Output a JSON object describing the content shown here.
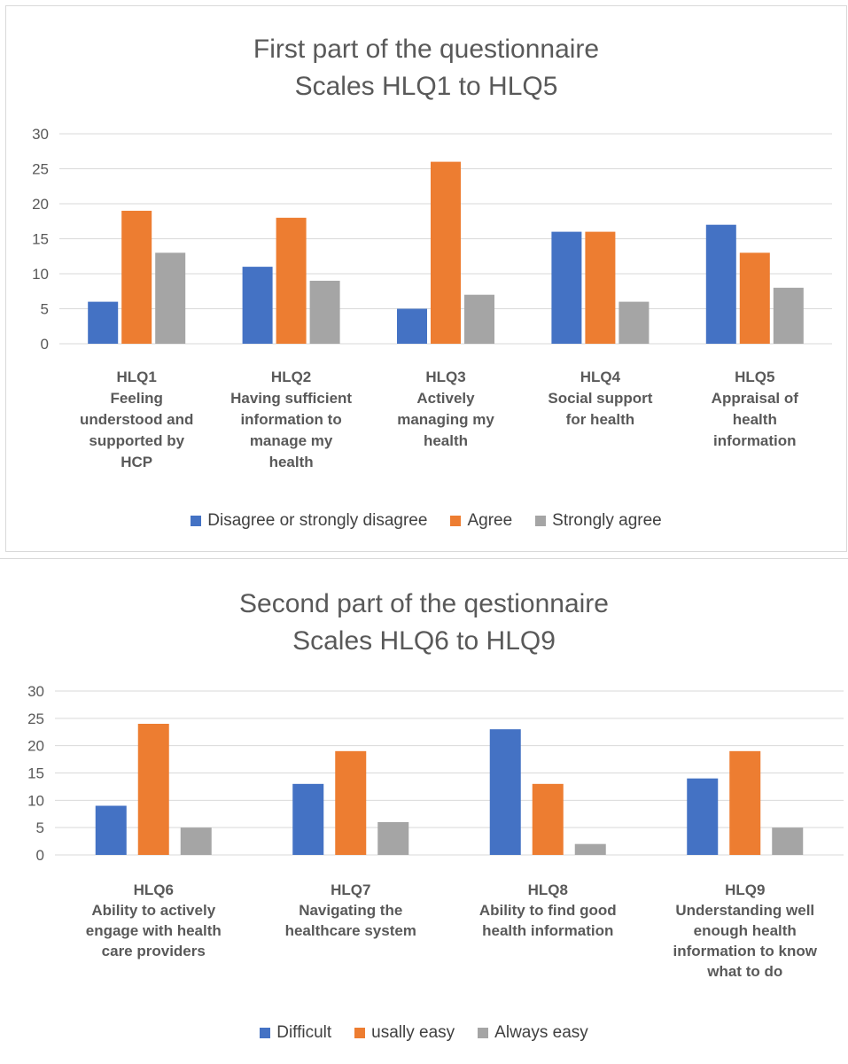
{
  "chart_data": [
    {
      "type": "bar",
      "title_lines": [
        "First part of the questionnaire",
        "Scales HLQ1 to HLQ5"
      ],
      "categories": [
        [
          "HLQ1",
          "Feeling",
          "understood and",
          "supported by",
          "HCP"
        ],
        [
          "HLQ2",
          "Having sufficient",
          "information to",
          "manage my",
          "health"
        ],
        [
          "HLQ3",
          "Actively",
          "managing my",
          "health"
        ],
        [
          "HLQ4",
          "Social support",
          "for health"
        ],
        [
          "HLQ5",
          "Appraisal of",
          "health",
          "information"
        ]
      ],
      "series": [
        {
          "name": "Disagree or strongly disagree",
          "color": "#4472c4",
          "values": [
            6,
            11,
            5,
            16,
            17
          ]
        },
        {
          "name": "Agree",
          "color": "#ed7d31",
          "values": [
            19,
            18,
            26,
            16,
            13
          ]
        },
        {
          "name": "Strongly agree",
          "color": "#a5a5a5",
          "values": [
            13,
            9,
            7,
            6,
            8
          ]
        }
      ],
      "ylim": [
        0,
        30
      ],
      "yticks": [
        0,
        5,
        10,
        15,
        20,
        25,
        30
      ],
      "grid": true,
      "legend_position": "bottom"
    },
    {
      "type": "bar",
      "title_lines": [
        "Second part of the qestionnaire",
        "Scales HLQ6 to HLQ9"
      ],
      "categories": [
        [
          "HLQ6",
          "Ability to actively",
          "engage with health",
          "care providers"
        ],
        [
          "HLQ7",
          "Navigating the",
          "healthcare system"
        ],
        [
          "HLQ8",
          "Ability to find good",
          "health information"
        ],
        [
          "HLQ9",
          "Understanding well",
          "enough health",
          "information to know",
          "what to do"
        ]
      ],
      "series": [
        {
          "name": "Difficult",
          "color": "#4472c4",
          "values": [
            9,
            13,
            23,
            14
          ]
        },
        {
          "name": "usally easy",
          "color": "#ed7d31",
          "values": [
            24,
            19,
            13,
            19
          ]
        },
        {
          "name": "Always easy",
          "color": "#a5a5a5",
          "values": [
            5,
            6,
            2,
            5
          ]
        }
      ],
      "ylim": [
        0,
        30
      ],
      "yticks": [
        0,
        5,
        10,
        15,
        20,
        25,
        30
      ],
      "grid": true,
      "legend_position": "bottom"
    }
  ]
}
